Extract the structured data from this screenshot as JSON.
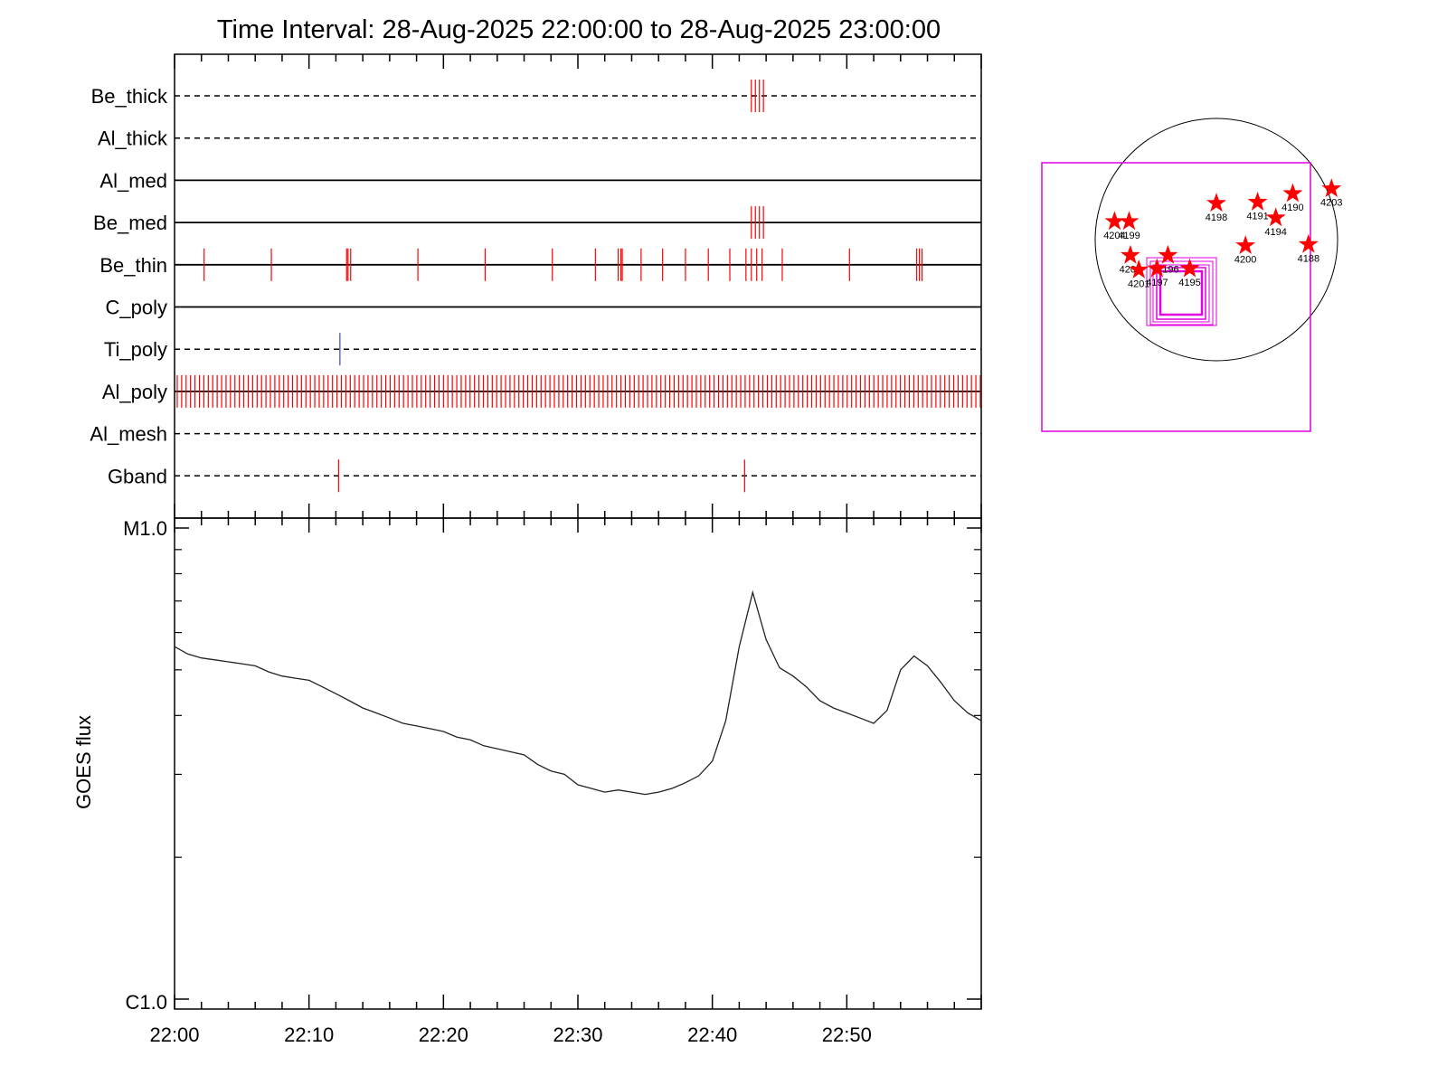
{
  "chart_data": [
    {
      "type": "event-timeline",
      "title": "Time Interval: 28-Aug-2025 22:00:00 to 28-Aug-2025 23:00:00",
      "x_unit": "minutes after 22:00",
      "xlim": [
        0,
        60
      ],
      "channels": [
        {
          "name": "Be_thick",
          "line": "dashed",
          "events": [
            42.9,
            43.2,
            43.5,
            43.8
          ]
        },
        {
          "name": "Al_thick",
          "line": "dashed",
          "events": []
        },
        {
          "name": "Al_med",
          "line": "solid",
          "events": []
        },
        {
          "name": "Be_med",
          "line": "solid",
          "events": [
            42.9,
            43.2,
            43.5,
            43.8
          ]
        },
        {
          "name": "Be_thin",
          "line": "solid",
          "events": [
            2.2,
            7.2,
            12.8,
            12.9,
            13.1,
            18.1,
            23.1,
            28.1,
            31.3,
            33.0,
            33.2,
            33.3,
            34.7,
            36.3,
            38.0,
            39.7,
            41.3,
            42.5,
            42.9,
            43.3,
            43.7,
            45.2,
            50.2,
            55.2,
            55.4,
            55.6
          ]
        },
        {
          "name": "C_poly",
          "line": "solid",
          "events": []
        },
        {
          "name": "Ti_poly",
          "line": "dashed",
          "events": [
            12.3
          ],
          "event_color": "#4040c0"
        },
        {
          "name": "Al_poly",
          "line": "solid",
          "events": "dense",
          "spacing": 0.33
        },
        {
          "name": "Al_mesh",
          "line": "dashed",
          "events": []
        },
        {
          "name": "Gband",
          "line": "dashed",
          "events": [
            12.2,
            42.4
          ]
        }
      ],
      "event_color": "#ff0000"
    },
    {
      "type": "line",
      "ylabel": "GOES flux",
      "yscale": "log",
      "ylim": [
        1e-06,
        1e-05
      ],
      "ytick_labels": [
        "C1.0",
        "M1.0"
      ],
      "xlim": [
        0,
        60
      ],
      "x_tick_labels": [
        "22:00",
        "22:10",
        "22:20",
        "22:30",
        "22:40",
        "22:50"
      ],
      "x": [
        0,
        1,
        2,
        3,
        4,
        5,
        6,
        7,
        8,
        9,
        10,
        11,
        12,
        13,
        14,
        15,
        16,
        17,
        18,
        19,
        20,
        21,
        22,
        23,
        24,
        25,
        26,
        27,
        28,
        29,
        30,
        31,
        32,
        33,
        34,
        35,
        36,
        37,
        38,
        39,
        40,
        41,
        42,
        43,
        44,
        45,
        46,
        47,
        48,
        49,
        50,
        51,
        52,
        53,
        54,
        55,
        56,
        57,
        58,
        59,
        60
      ],
      "y": [
        5.6e-06,
        5.4e-06,
        5.3e-06,
        5.25e-06,
        5.2e-06,
        5.15e-06,
        5.1e-06,
        4.95e-06,
        4.85e-06,
        4.8e-06,
        4.75e-06,
        4.6e-06,
        4.45e-06,
        4.3e-06,
        4.15e-06,
        4.05e-06,
        3.95e-06,
        3.85e-06,
        3.8e-06,
        3.75e-06,
        3.7e-06,
        3.6e-06,
        3.55e-06,
        3.45e-06,
        3.4e-06,
        3.35e-06,
        3.3e-06,
        3.15e-06,
        3.05e-06,
        3e-06,
        2.85e-06,
        2.8e-06,
        2.75e-06,
        2.78e-06,
        2.75e-06,
        2.72e-06,
        2.75e-06,
        2.8e-06,
        2.88e-06,
        2.98e-06,
        3.2e-06,
        3.9e-06,
        5.6e-06,
        7.3e-06,
        5.8e-06,
        5.05e-06,
        4.85e-06,
        4.6e-06,
        4.3e-06,
        4.15e-06,
        4.05e-06,
        3.95e-06,
        3.85e-06,
        4.1e-06,
        5e-06,
        5.35e-06,
        5.1e-06,
        4.7e-06,
        4.3e-06,
        4.05e-06,
        3.9e-06
      ]
    },
    {
      "type": "solar-map",
      "regions": [
        {
          "id": "4190",
          "x": 0.63,
          "y": 0.38
        },
        {
          "id": "4203",
          "x": 0.95,
          "y": 0.42
        },
        {
          "id": "4198",
          "x": 0.0,
          "y": 0.3
        },
        {
          "id": "4191",
          "x": 0.34,
          "y": 0.31
        },
        {
          "id": "4194",
          "x": 0.49,
          "y": 0.18
        },
        {
          "id": "4200",
          "x": 0.24,
          "y": -0.05
        },
        {
          "id": "4188",
          "x": 0.76,
          "y": -0.04
        },
        {
          "id": "4204",
          "x": -0.84,
          "y": 0.15
        },
        {
          "id": "4199",
          "x": -0.72,
          "y": 0.15
        },
        {
          "id": "4202",
          "x": -0.71,
          "y": -0.13
        },
        {
          "id": "4201",
          "x": -0.64,
          "y": -0.25
        },
        {
          "id": "4196",
          "x": -0.4,
          "y": -0.13
        },
        {
          "id": "4197",
          "x": -0.49,
          "y": -0.24
        },
        {
          "id": "4195",
          "x": -0.22,
          "y": -0.24
        }
      ]
    }
  ]
}
